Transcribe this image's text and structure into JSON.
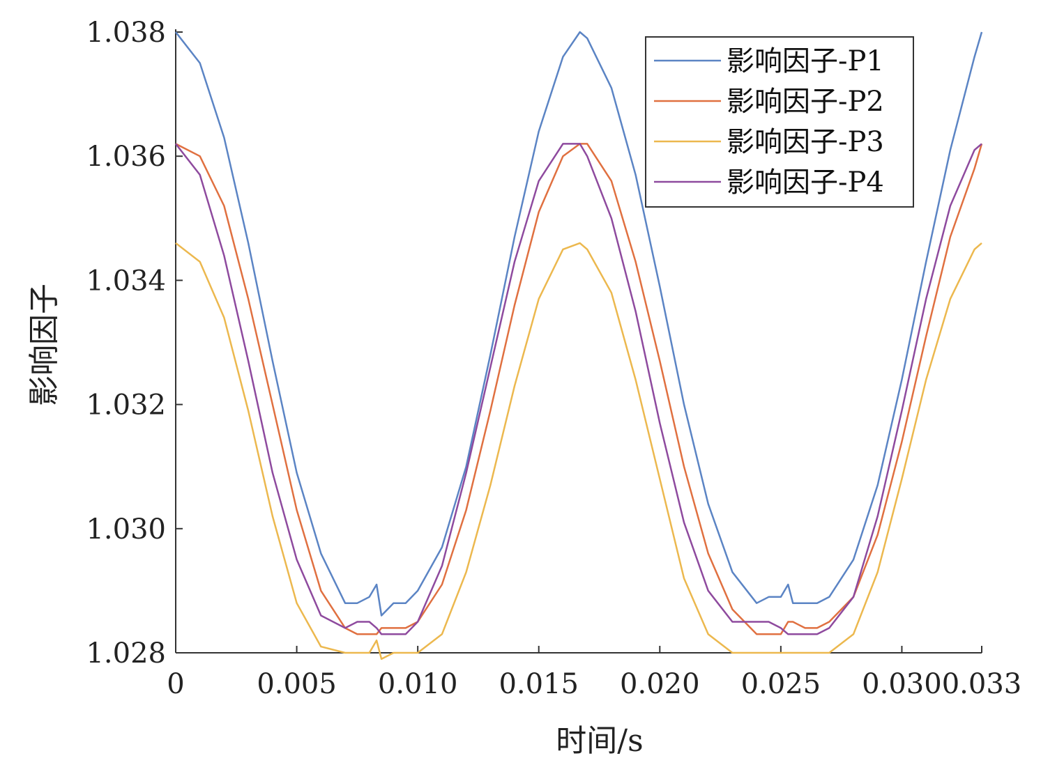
{
  "chart_data": {
    "type": "line",
    "title": "",
    "xlabel": "时间/s",
    "ylabel": "影响因子",
    "xlim": [
      0,
      0.0333
    ],
    "ylim": [
      1.028,
      1.038
    ],
    "xticks": [
      0,
      0.005,
      0.01,
      0.015,
      0.02,
      0.025,
      0.03,
      0.0333
    ],
    "xtick_labels": [
      "0",
      "0.005",
      "0.010",
      "0.015",
      "0.020",
      "0.025",
      "0.030",
      "0.033"
    ],
    "yticks": [
      1.028,
      1.03,
      1.032,
      1.034,
      1.036,
      1.038
    ],
    "ytick_labels": [
      "1.028",
      "1.030",
      "1.032",
      "1.034",
      "1.036",
      "1.038"
    ],
    "grid": false,
    "legend_position": "top-right",
    "x": [
      0,
      0.001,
      0.002,
      0.003,
      0.004,
      0.005,
      0.006,
      0.007,
      0.0075,
      0.008,
      0.0083,
      0.0085,
      0.009,
      0.0095,
      0.01,
      0.011,
      0.012,
      0.013,
      0.014,
      0.015,
      0.016,
      0.0167,
      0.017,
      0.018,
      0.019,
      0.02,
      0.021,
      0.022,
      0.023,
      0.024,
      0.0245,
      0.025,
      0.0253,
      0.0255,
      0.026,
      0.0265,
      0.027,
      0.028,
      0.029,
      0.03,
      0.031,
      0.032,
      0.033,
      0.0333
    ],
    "series": [
      {
        "name": "影响因子-P1",
        "color": "#5b84c4",
        "values": [
          1.038,
          1.0375,
          1.0363,
          1.0346,
          1.0327,
          1.0309,
          1.0296,
          1.0288,
          1.0288,
          1.0289,
          1.0291,
          1.0286,
          1.0288,
          1.0288,
          1.029,
          1.0297,
          1.031,
          1.0328,
          1.0347,
          1.0364,
          1.0376,
          1.038,
          1.0379,
          1.0371,
          1.0357,
          1.0339,
          1.032,
          1.0304,
          1.0293,
          1.0288,
          1.0289,
          1.0289,
          1.0291,
          1.0288,
          1.0288,
          1.0288,
          1.0289,
          1.0295,
          1.0307,
          1.0324,
          1.0343,
          1.0361,
          1.0376,
          1.038
        ]
      },
      {
        "name": "影响因子-P2",
        "color": "#e07040",
        "values": [
          1.0362,
          1.036,
          1.0352,
          1.0337,
          1.032,
          1.0303,
          1.029,
          1.0284,
          1.0283,
          1.0283,
          1.0283,
          1.0284,
          1.0284,
          1.0284,
          1.0285,
          1.0291,
          1.0303,
          1.0319,
          1.0336,
          1.0351,
          1.036,
          1.0362,
          1.0362,
          1.0356,
          1.0343,
          1.0327,
          1.031,
          1.0296,
          1.0287,
          1.0283,
          1.0283,
          1.0283,
          1.0285,
          1.0285,
          1.0284,
          1.0284,
          1.0285,
          1.0289,
          1.0299,
          1.0314,
          1.0331,
          1.0347,
          1.0358,
          1.0362
        ]
      },
      {
        "name": "影响因子-P3",
        "color": "#ecb84e",
        "values": [
          1.0346,
          1.0343,
          1.0334,
          1.0319,
          1.0302,
          1.0288,
          1.0281,
          1.028,
          1.028,
          1.028,
          1.0282,
          1.0279,
          1.028,
          1.028,
          1.028,
          1.0283,
          1.0293,
          1.0307,
          1.0323,
          1.0337,
          1.0345,
          1.0346,
          1.0345,
          1.0338,
          1.0324,
          1.0308,
          1.0292,
          1.0283,
          1.028,
          1.028,
          1.028,
          1.028,
          1.028,
          1.028,
          1.028,
          1.028,
          1.028,
          1.0283,
          1.0293,
          1.0308,
          1.0324,
          1.0337,
          1.0345,
          1.0346
        ]
      },
      {
        "name": "影响因子-P4",
        "color": "#8e4a9e",
        "values": [
          1.0362,
          1.0357,
          1.0344,
          1.0327,
          1.0309,
          1.0295,
          1.0286,
          1.0284,
          1.0285,
          1.0285,
          1.0284,
          1.0283,
          1.0283,
          1.0283,
          1.0285,
          1.0294,
          1.0309,
          1.0326,
          1.0343,
          1.0356,
          1.0362,
          1.0362,
          1.036,
          1.035,
          1.0335,
          1.0317,
          1.0301,
          1.029,
          1.0285,
          1.0285,
          1.0285,
          1.0284,
          1.0283,
          1.0283,
          1.0283,
          1.0283,
          1.0284,
          1.0289,
          1.0302,
          1.0319,
          1.0337,
          1.0352,
          1.0361,
          1.0362
        ]
      }
    ]
  }
}
